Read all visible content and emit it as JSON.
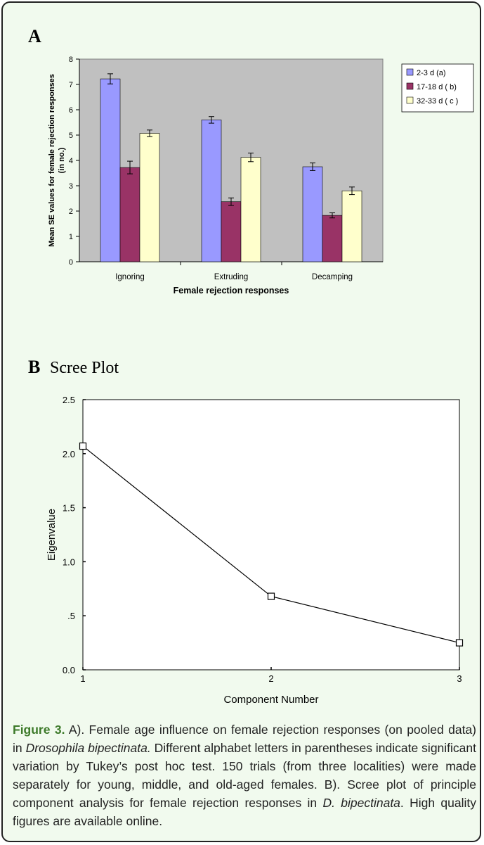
{
  "colors": {
    "figure_background": "#f1faee",
    "figure_border": "#222222",
    "caption_label": "#3d7a2a",
    "caption_text": "#222222"
  },
  "panel_a": {
    "letter": "A"
  },
  "panel_b": {
    "letter": "B"
  },
  "chart_data": [
    {
      "type": "bar",
      "title": "",
      "xlabel": "Female rejection responses",
      "ylabel_line1": "Mean  SE values for female rejection responses",
      "ylabel_line2": "(in no.)",
      "categories": [
        "Ignoring",
        "Extruding",
        "Decamping"
      ],
      "ylim": [
        0,
        8
      ],
      "yticks": [
        0,
        1,
        2,
        3,
        4,
        5,
        6,
        7,
        8
      ],
      "grid": false,
      "plot_background": "#c0c0c0",
      "legend_position": "right",
      "series": [
        {
          "name": "2-3 d (a)",
          "color": "#9999ff",
          "values": [
            7.22,
            5.6,
            3.75
          ],
          "errors": [
            0.2,
            0.13,
            0.15
          ]
        },
        {
          "name": "17-18 d ( b)",
          "color": "#993366",
          "values": [
            3.72,
            2.37,
            1.83
          ],
          "errors": [
            0.25,
            0.15,
            0.1
          ]
        },
        {
          "name": "32-33 d ( c )",
          "color": "#ffffcc",
          "values": [
            5.07,
            4.12,
            2.8
          ],
          "errors": [
            0.13,
            0.17,
            0.15
          ]
        }
      ]
    },
    {
      "type": "line",
      "title": "Scree Plot",
      "xlabel": "Component Number",
      "ylabel": "Eigenvalue",
      "x": [
        1,
        2,
        3
      ],
      "xticks": [
        "1",
        "2",
        "3"
      ],
      "ylim": [
        0,
        2.5
      ],
      "yticks": [
        0,
        0.5,
        1.0,
        1.5,
        2.0,
        2.5
      ],
      "ytick_labels": [
        "0.0",
        ".5",
        "1.0",
        "1.5",
        "2.0",
        "2.5"
      ],
      "grid": false,
      "series": [
        {
          "values": [
            2.07,
            0.68,
            0.25
          ],
          "marker": "square"
        }
      ]
    }
  ],
  "caption": {
    "label": "Figure 3.",
    "t1": " A). Female age influence on female rejection responses (on pooled data) in ",
    "species1": "Drosophila bipectinata.",
    "t2": " Different alphabet letters in parentheses indicate significant variation by Tukey’s post hoc test. 150 trials (from three localities) were made separately for young, middle, and old-aged females. B). Scree plot of principle component analysis for female rejection responses in ",
    "species2": "D. bipectinata",
    "t3": ". High quality figures are available online."
  }
}
